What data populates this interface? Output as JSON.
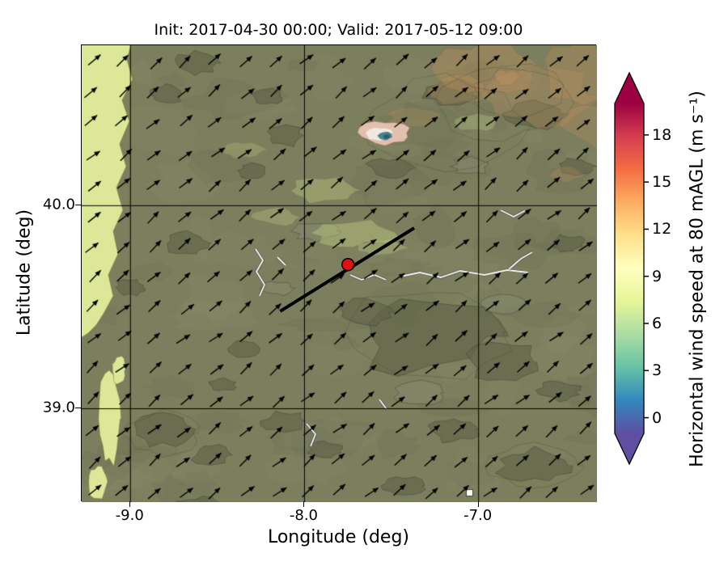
{
  "title": "Init: 2017-04-30 00:00; Valid: 2017-05-12 09:00",
  "axes": {
    "xlabel": "Longitude (deg)",
    "ylabel": "Latitude (deg)",
    "xlim": [
      -9.28,
      -6.32
    ],
    "ylim": [
      38.54,
      40.79
    ],
    "x_ticks": [
      {
        "value": -9.0,
        "label": "-9.0"
      },
      {
        "value": -8.0,
        "label": "-8.0"
      },
      {
        "value": -7.0,
        "label": "-7.0"
      }
    ],
    "y_ticks": [
      {
        "value": 40.0,
        "label": "40.0"
      },
      {
        "value": 39.0,
        "label": "39.0"
      }
    ]
  },
  "colorbar": {
    "label": "Horizontal wind speed at 80 mAGL (m s⁻¹)",
    "ticks": [
      {
        "value": 0,
        "label": "0"
      },
      {
        "value": 3,
        "label": "3"
      },
      {
        "value": 6,
        "label": "6"
      },
      {
        "value": 9,
        "label": "9"
      },
      {
        "value": 12,
        "label": "12"
      },
      {
        "value": 15,
        "label": "15"
      },
      {
        "value": 18,
        "label": "18"
      }
    ],
    "range": [
      -1,
      20
    ],
    "colors_bottom_to_top": [
      "#5e4fa2",
      "#3288bd",
      "#66c2a5",
      "#abdda4",
      "#e6f598",
      "#ffffbf",
      "#fee08b",
      "#fdae61",
      "#f46d43",
      "#d53e4f",
      "#9e0142"
    ]
  },
  "map": {
    "palette": {
      "base": "#7c7f5d",
      "yellow_band": "#dce897",
      "dark_patch": "rgba(95,99,73,0.62)",
      "light_patch": "rgba(133,136,110,0.55)",
      "tan": "188,143,95",
      "pale": "200,212,135",
      "contour": "rgba(58,60,44,0.5)",
      "pink_spot": "#e2bfae",
      "white_spot": "#f0e9df",
      "teal_spot": "#49808e",
      "deep_spot": "#2d5a70",
      "grid": "#000000",
      "arrow": "#000000"
    },
    "marker": {
      "lon": -7.75,
      "lat": 39.71,
      "color": "#e01111"
    },
    "transect": {
      "from": {
        "lon": -8.14,
        "lat": 39.48
      },
      "to": {
        "lon": -7.37,
        "lat": 39.89
      },
      "color": "#000000"
    }
  },
  "chart_data": {
    "type": "heatmap",
    "title": "Init: 2017-04-30 00:00; Valid: 2017-05-12 09:00",
    "xlabel": "Longitude (deg)",
    "ylabel": "Latitude (deg)",
    "x_ticks": [
      -9.0,
      -8.0,
      -7.0
    ],
    "y_ticks": [
      39.0,
      40.0
    ],
    "xlim": [
      -9.28,
      -6.32
    ],
    "ylim": [
      38.54,
      40.79
    ],
    "colorbar_label": "Horizontal wind speed at 80 mAGL (m s⁻¹)",
    "colorbar_ticks": [
      0,
      3,
      6,
      9,
      12,
      15,
      18
    ],
    "colorbar_range_extended": [
      -1,
      20
    ],
    "field_estimates_ms": [
      {
        "region": "western coastal band (lon < -9.0)",
        "value": 8.5
      },
      {
        "region": "interior plains (most of map)",
        "value": 5.5
      },
      {
        "region": "upper-right highlands (tan shading)",
        "value": 6.5
      },
      {
        "region": "small teal spot near lon -7.55, lat 40.4",
        "value": 2.5
      },
      {
        "region": "pale/pink ring around teal spot",
        "value": 9.5
      }
    ],
    "wind_vectors": {
      "pattern": "uniform grid of quiver arrows pointing toward the northeast",
      "approx_grid_cols_rows": [
        17,
        15
      ],
      "direction_deg_ccw_from_east": 40
    },
    "marker_point": {
      "lon": -7.75,
      "lat": 39.71,
      "color": "#e01111"
    },
    "transect_line": {
      "from": [
        -8.14,
        39.48
      ],
      "to": [
        -7.37,
        39.89
      ],
      "color": "#000000"
    },
    "grid": true,
    "legend_position": "right colorbar with extend arrows both ends"
  }
}
